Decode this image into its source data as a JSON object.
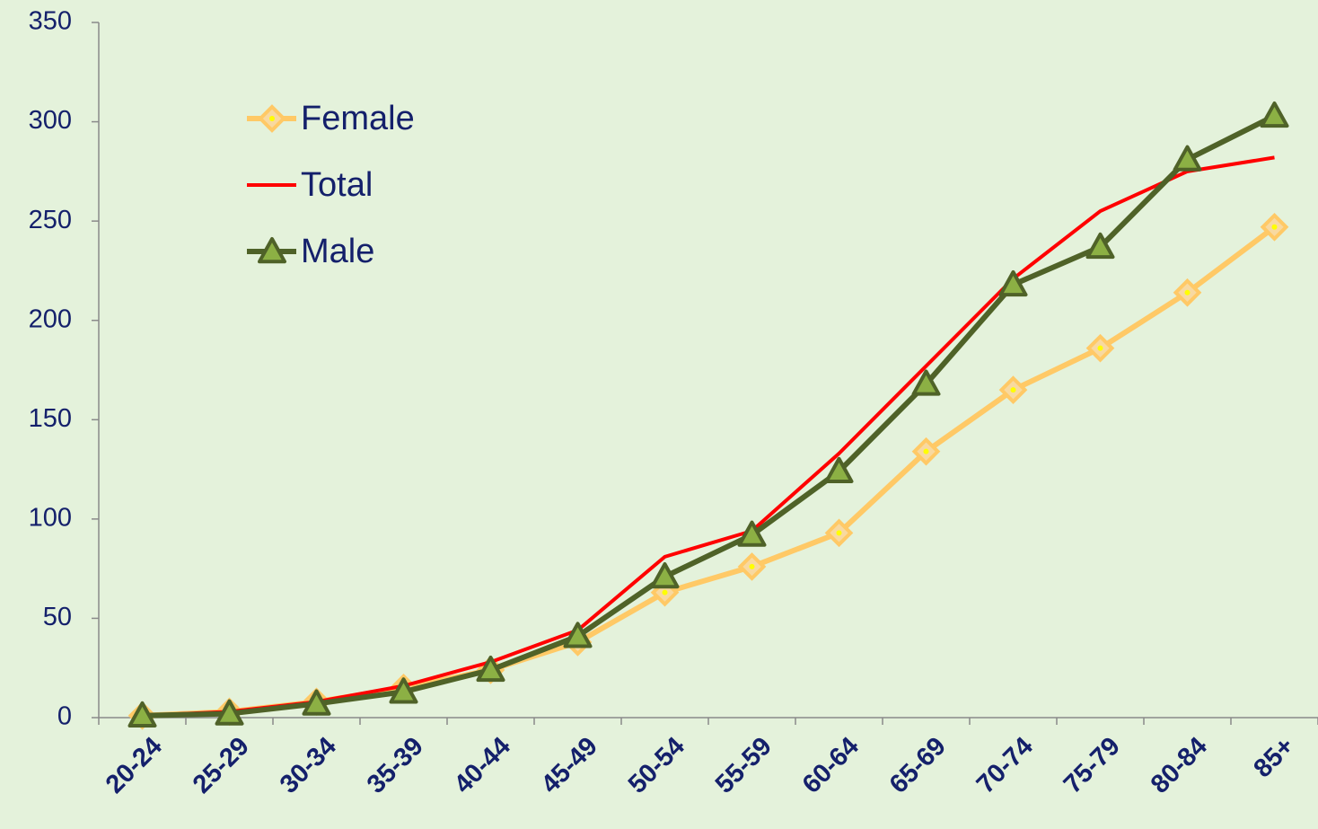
{
  "chart_data": {
    "type": "line",
    "categories": [
      "20-24",
      "25-29",
      "30-34",
      "35-39",
      "40-44",
      "45-49",
      "50-54",
      "55-59",
      "60-64",
      "65-69",
      "70-74",
      "75-79",
      "80-84",
      "85+"
    ],
    "series": [
      {
        "name": "Female",
        "color": "#ffc966",
        "marker": "diamond",
        "values": [
          1,
          3,
          8,
          15,
          24,
          38,
          63,
          76,
          93,
          134,
          165,
          186,
          214,
          247
        ]
      },
      {
        "name": "Total",
        "color": "#ff0000",
        "marker": "none",
        "values": [
          1,
          3,
          8,
          16,
          28,
          44,
          81,
          94,
          133,
          177,
          221,
          255,
          275,
          282
        ]
      },
      {
        "name": "Male",
        "color": "#4f6228",
        "marker": "triangle",
        "values": [
          1,
          2,
          7,
          13,
          24,
          41,
          71,
          92,
          124,
          168,
          218,
          237,
          281,
          303
        ]
      }
    ],
    "ylim": [
      0,
      350
    ],
    "yticks": [
      0,
      50,
      100,
      150,
      200,
      250,
      300,
      350
    ],
    "grid": false,
    "legend": "upper left"
  }
}
